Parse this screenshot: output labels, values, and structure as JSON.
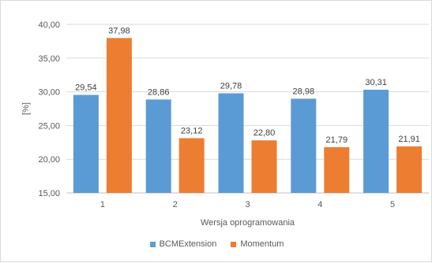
{
  "chart_data": {
    "type": "bar",
    "categories": [
      "1",
      "2",
      "3",
      "4",
      "5"
    ],
    "series": [
      {
        "name": "BCMExtension",
        "values": [
          29.54,
          28.86,
          29.78,
          28.98,
          30.31
        ],
        "labels": [
          "29,54",
          "28,86",
          "29,78",
          "28,98",
          "30,31"
        ],
        "color": "#5b9bd5"
      },
      {
        "name": "Momentum",
        "values": [
          37.98,
          23.12,
          22.8,
          21.79,
          21.91
        ],
        "labels": [
          "37,98",
          "23,12",
          "22,80",
          "21,79",
          "21,91"
        ],
        "color": "#ed7d31"
      }
    ],
    "xlabel": "Wersja oprogramowania",
    "ylabel": "[%]",
    "ylim": [
      15,
      40
    ],
    "yticks": [
      15,
      20,
      25,
      30,
      35,
      40
    ],
    "ytick_labels": [
      "15,00",
      "20,00",
      "25,00",
      "30,00",
      "35,00",
      "40,00"
    ],
    "grid": true,
    "legend_position": "bottom"
  }
}
